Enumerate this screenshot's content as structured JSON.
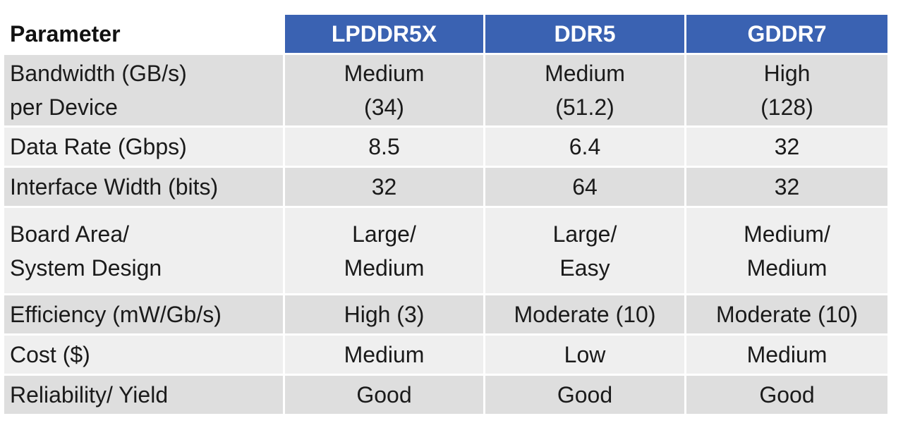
{
  "table": {
    "headers": [
      "Parameter",
      "LPDDR5X",
      "DDR5",
      "GDDR7"
    ],
    "rows": [
      [
        "Bandwidth (GB/s)\nper Device",
        "Medium\n(34)",
        "Medium\n(51.2)",
        "High\n(128)"
      ],
      [
        "Data Rate (Gbps)",
        "8.5",
        "6.4",
        "32"
      ],
      [
        "Interface Width (bits)",
        "32",
        "64",
        "32"
      ],
      [
        "Board Area/\nSystem Design",
        "Large/\nMedium",
        "Large/\nEasy",
        "Medium/\nMedium"
      ],
      [
        "Efficiency (mW/Gb/s)",
        "High (3)",
        "Moderate (10)",
        "Moderate (10)"
      ],
      [
        "Cost ($)",
        "Medium",
        "Low",
        "Medium"
      ],
      [
        "Reliability/ Yield",
        "Good",
        "Good",
        "Good"
      ]
    ]
  },
  "colors": {
    "header_blue": "#3a62b2",
    "row_dark": "#dedede",
    "row_light": "#efefef"
  }
}
